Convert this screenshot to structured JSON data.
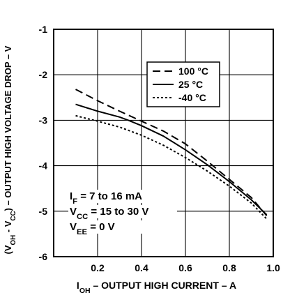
{
  "chart_data": {
    "type": "line",
    "xlabel_parts": [
      "I",
      "OH",
      " – OUTPUT HIGH CURRENT – A"
    ],
    "ylabel_parts": [
      "(V",
      "OH",
      " - V",
      "CC",
      ") – OUTPUT HIGH VOLTAGE DROP – V"
    ],
    "xlim": [
      0,
      1.0
    ],
    "ylim": [
      -6,
      -1
    ],
    "x_ticks": [
      0.2,
      0.4,
      0.6,
      0.8,
      1.0
    ],
    "x_tick_labels": [
      "0.2",
      "0.4",
      "0.6",
      "0.8",
      "1.0"
    ],
    "y_ticks": [
      -1,
      -2,
      -3,
      -4,
      -5,
      -6
    ],
    "y_tick_labels": [
      "-1",
      "-2",
      "-3",
      "-4",
      "-5",
      "-6"
    ],
    "grid": true,
    "legend_position": "top-right",
    "series": [
      {
        "name": "100 °C",
        "style": "dashed",
        "x": [
          0.1,
          0.2,
          0.3,
          0.4,
          0.5,
          0.6,
          0.7,
          0.8,
          0.9,
          0.97
        ],
        "y": [
          -2.32,
          -2.57,
          -2.8,
          -3.02,
          -3.24,
          -3.52,
          -3.9,
          -4.3,
          -4.7,
          -5.1
        ]
      },
      {
        "name": "25 °C",
        "style": "solid",
        "x": [
          0.1,
          0.2,
          0.3,
          0.34,
          0.4,
          0.5,
          0.6,
          0.7,
          0.8,
          0.9,
          0.97
        ],
        "y": [
          -2.65,
          -2.8,
          -2.93,
          -3.0,
          -3.12,
          -3.35,
          -3.65,
          -3.98,
          -4.35,
          -4.75,
          -5.08
        ]
      },
      {
        "name": "-40 °C",
        "style": "dotted",
        "x": [
          0.1,
          0.2,
          0.3,
          0.4,
          0.5,
          0.6,
          0.7,
          0.8,
          0.9,
          0.97
        ],
        "y": [
          -2.9,
          -3.02,
          -3.15,
          -3.33,
          -3.55,
          -3.82,
          -4.12,
          -4.45,
          -4.82,
          -5.17
        ]
      }
    ],
    "annotations": [
      {
        "parts": [
          "I",
          "F",
          " = 7 to 16 mA"
        ]
      },
      {
        "parts": [
          "V",
          "CC",
          " = 15 to 30 V"
        ]
      },
      {
        "parts": [
          "V",
          "EE",
          " = 0 V"
        ]
      }
    ]
  }
}
